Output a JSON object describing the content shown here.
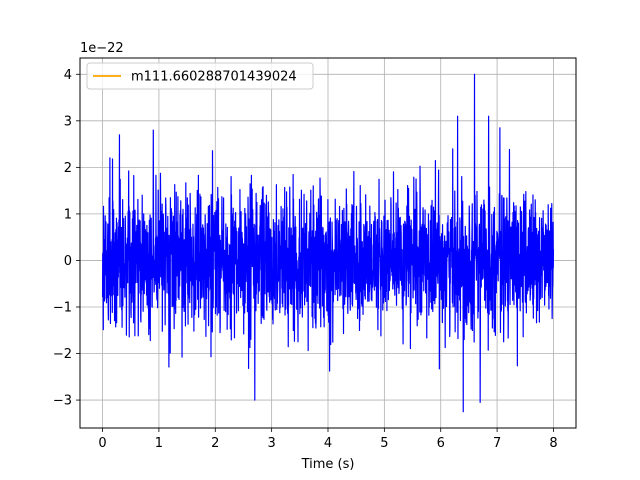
{
  "chart_data": {
    "type": "line",
    "title": "",
    "xlabel": "Time (s)",
    "ylabel": "",
    "y_scale_label": "1e−22",
    "y_scale": 1e-22,
    "xlim": [
      -0.4,
      8.4
    ],
    "ylim": [
      -3.6,
      4.35
    ],
    "x_ticks": [
      0,
      1,
      2,
      3,
      4,
      5,
      6,
      7,
      8
    ],
    "x_tick_labels": [
      "0",
      "1",
      "2",
      "3",
      "4",
      "5",
      "6",
      "7",
      "8"
    ],
    "y_ticks": [
      -3,
      -2,
      -1,
      0,
      1,
      2,
      3,
      4
    ],
    "y_tick_labels": [
      "−3",
      "−2",
      "−1",
      "0",
      "1",
      "2",
      "3",
      "4"
    ],
    "grid": true,
    "legend_position": "top-left",
    "series": [
      {
        "name": "m111.660288701439024",
        "color": "#ffa500",
        "values_in_legend_only": true
      },
      {
        "name": "",
        "color": "#0000ff",
        "x_range": [
          0,
          8
        ],
        "noise_sigma": 0.72,
        "notable_extrema": [
          {
            "x": 6.6,
            "y": 4.0
          },
          {
            "x": 6.4,
            "y": -3.25
          },
          {
            "x": 2.7,
            "y": -3.0
          },
          {
            "x": 6.7,
            "y": -3.05
          },
          {
            "x": 0.3,
            "y": 2.7
          },
          {
            "x": 0.9,
            "y": 2.8
          },
          {
            "x": 7.05,
            "y": 2.85
          },
          {
            "x": 6.85,
            "y": 3.1
          },
          {
            "x": 6.3,
            "y": 3.1
          }
        ]
      }
    ]
  },
  "colors": {
    "signal": "#0000ff",
    "legend_line": "#ffa500",
    "grid": "#b0b0b0",
    "axes": "#000000"
  }
}
